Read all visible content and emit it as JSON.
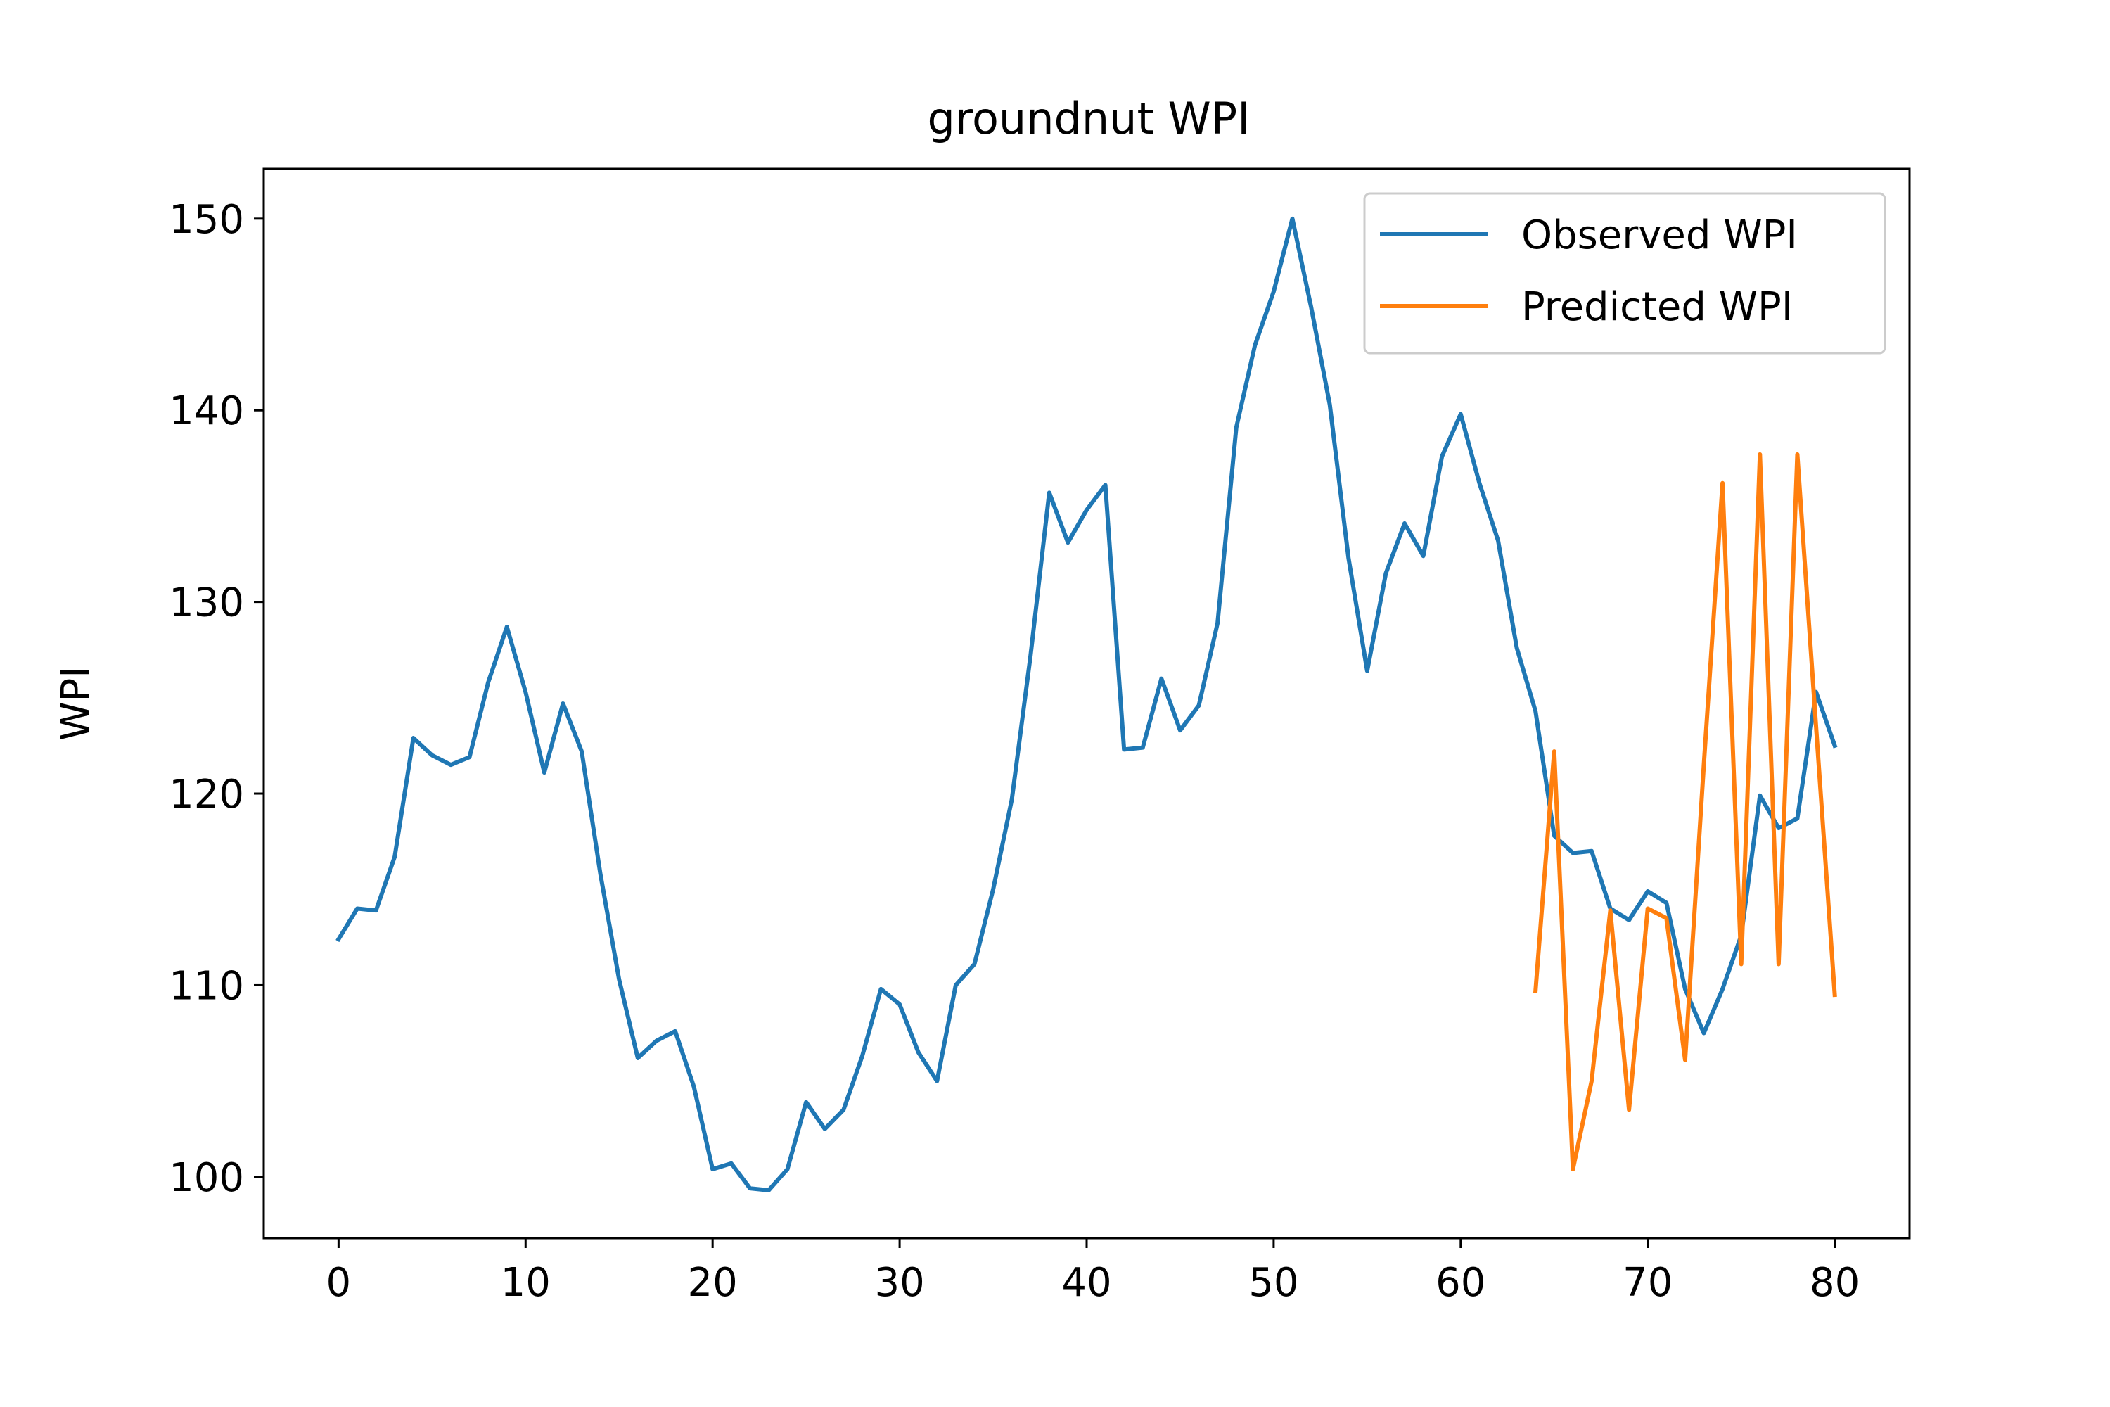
{
  "chart_data": {
    "type": "line",
    "title": "groundnut WPI",
    "xlabel": "",
    "ylabel": "WPI",
    "xlim": [
      -4,
      84
    ],
    "ylim": [
      96.8,
      152.6
    ],
    "x_ticks": [
      0,
      10,
      20,
      30,
      40,
      50,
      60,
      70,
      80
    ],
    "y_ticks": [
      100,
      110,
      120,
      130,
      140,
      150
    ],
    "grid": false,
    "legend_position": "upper right",
    "series": [
      {
        "name": "Observed WPI",
        "color": "#1f77b4",
        "x": [
          0,
          1,
          2,
          3,
          4,
          5,
          6,
          7,
          8,
          9,
          10,
          11,
          12,
          13,
          14,
          15,
          16,
          17,
          18,
          19,
          20,
          21,
          22,
          23,
          24,
          25,
          26,
          27,
          28,
          29,
          30,
          31,
          32,
          33,
          34,
          35,
          36,
          37,
          38,
          39,
          40,
          41,
          42,
          43,
          44,
          45,
          46,
          47,
          48,
          49,
          50,
          51,
          52,
          53,
          54,
          55,
          56,
          57,
          58,
          59,
          60,
          61,
          62,
          63,
          64,
          65,
          66,
          67,
          68,
          69,
          70,
          71,
          72,
          73,
          74,
          75,
          76,
          77,
          78,
          79,
          80
        ],
        "y": [
          112.4,
          114.0,
          113.9,
          116.7,
          122.9,
          122.0,
          121.5,
          121.9,
          125.8,
          128.7,
          125.3,
          121.1,
          124.7,
          122.2,
          115.8,
          110.3,
          106.2,
          107.1,
          107.6,
          104.7,
          100.4,
          100.7,
          99.4,
          99.3,
          100.4,
          103.9,
          102.5,
          103.5,
          106.3,
          109.8,
          109.0,
          106.5,
          105.0,
          110.0,
          111.1,
          115.0,
          119.7,
          127.2,
          135.7,
          133.1,
          134.8,
          136.1,
          122.3,
          122.4,
          126.0,
          123.3,
          124.6,
          128.9,
          139.1,
          143.4,
          146.2,
          150.0,
          145.4,
          140.3,
          132.3,
          126.4,
          131.5,
          134.1,
          132.4,
          137.6,
          139.8,
          136.2,
          133.2,
          127.6,
          124.3,
          117.8,
          116.9,
          117.0,
          114.0,
          113.4,
          114.9,
          114.3,
          109.8,
          107.5,
          109.8,
          112.6,
          119.9,
          118.2,
          118.7,
          125.3,
          122.5
        ]
      },
      {
        "name": "Predicted WPI",
        "color": "#ff7f0e",
        "x": [
          64,
          65,
          66,
          67,
          68,
          69,
          70,
          71,
          72,
          73,
          74,
          75,
          76,
          77,
          78,
          79,
          80
        ],
        "y": [
          109.7,
          122.2,
          100.4,
          105.0,
          113.9,
          103.5,
          114.0,
          113.5,
          106.1,
          121.5,
          136.2,
          111.1,
          137.7,
          111.1,
          137.7,
          123.5,
          109.5
        ]
      }
    ]
  }
}
